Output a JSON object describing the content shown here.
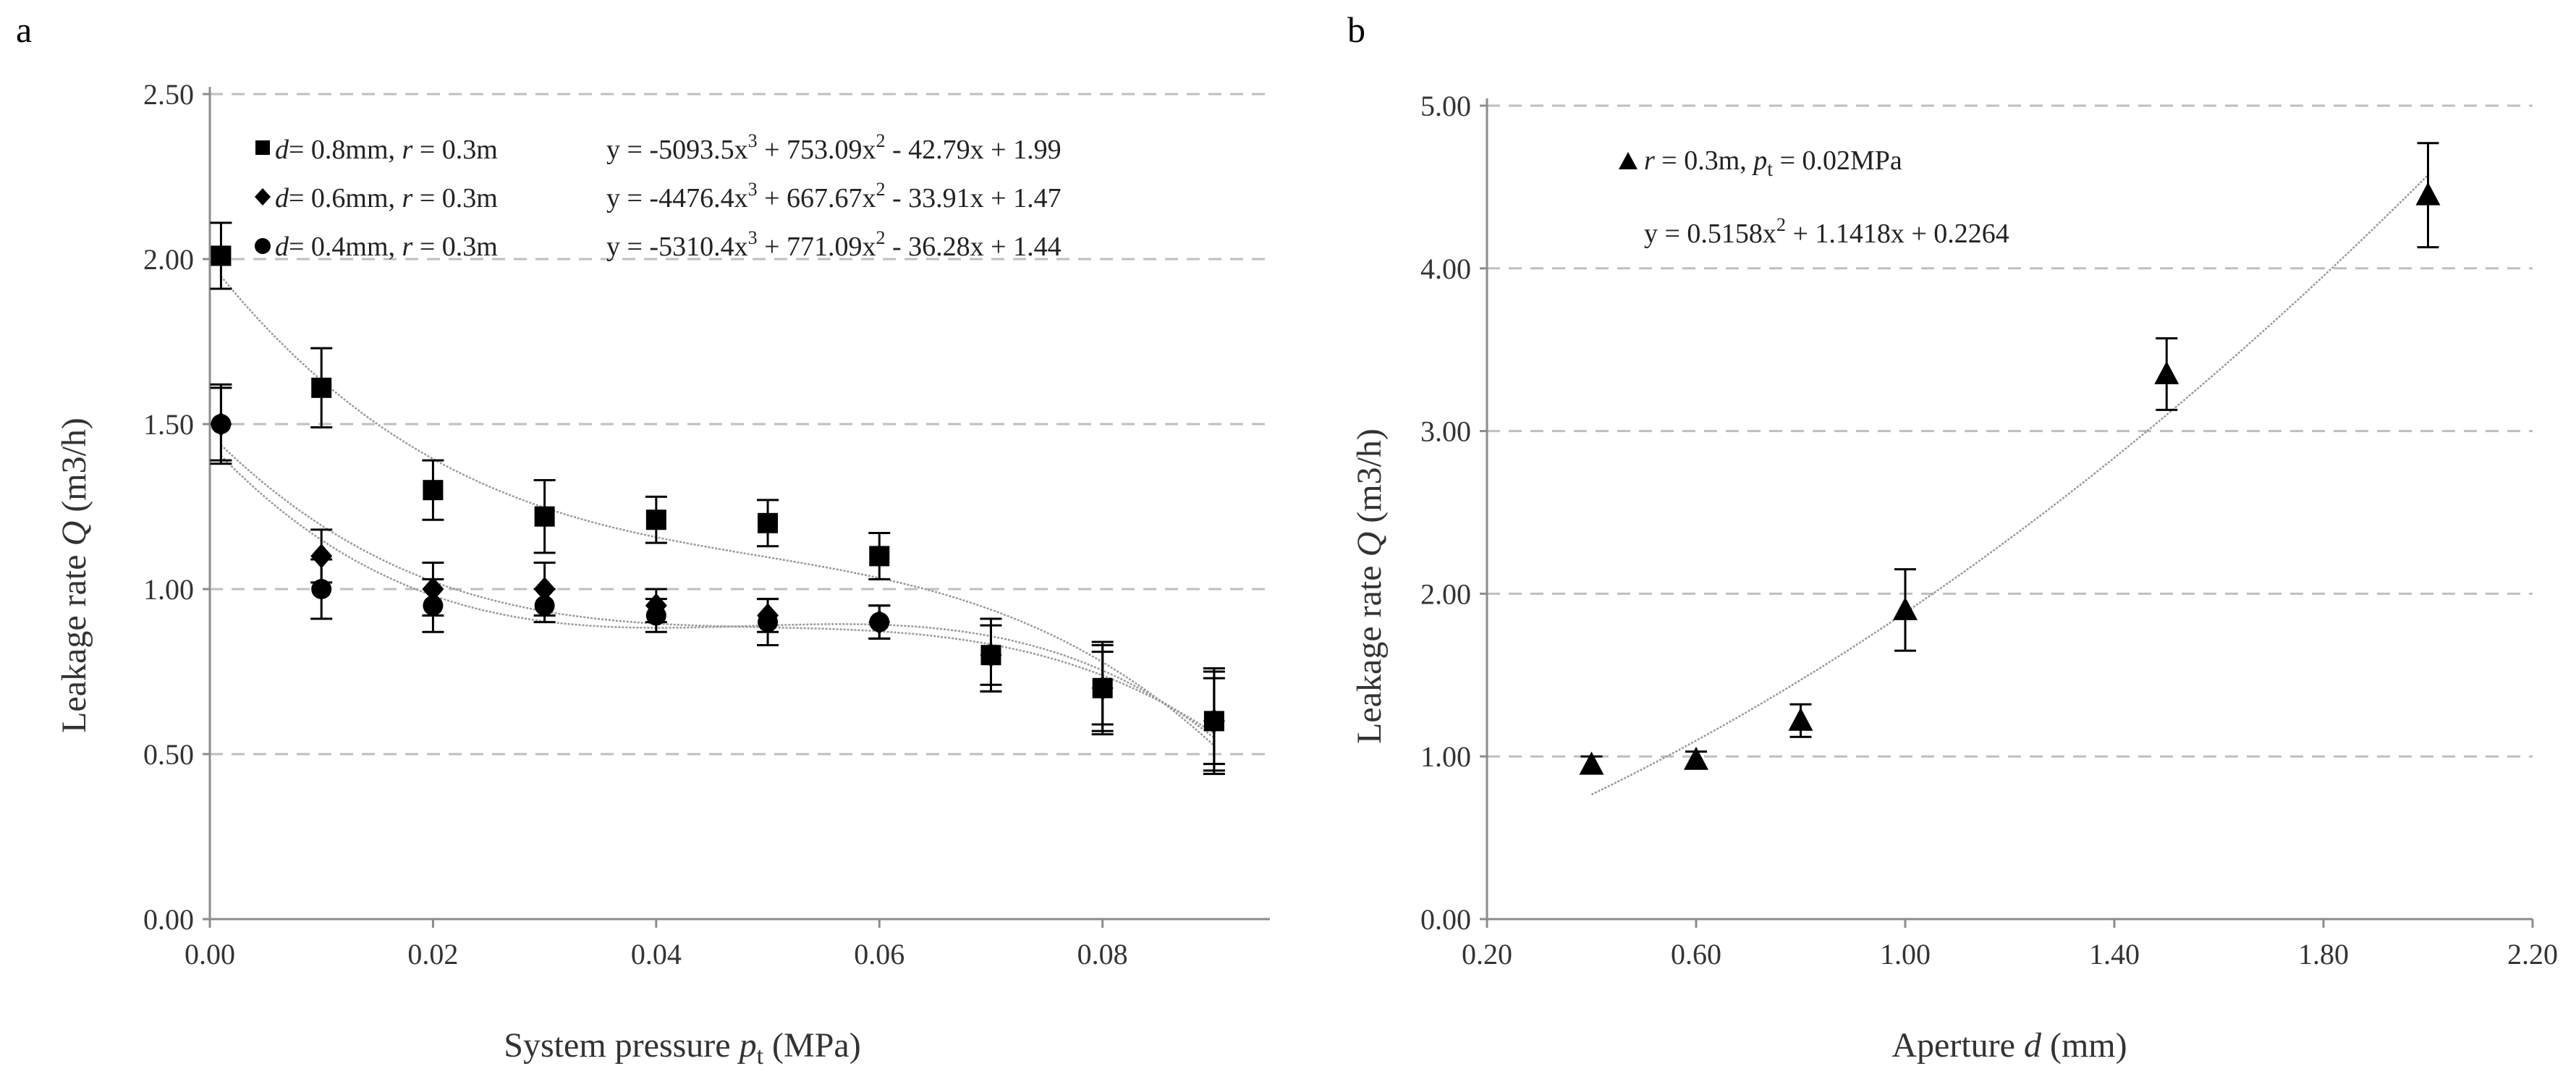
{
  "chart_data": [
    {
      "panel": "a",
      "type": "scatter",
      "xlabel": {
        "prefix": "System pressure ",
        "var": "p",
        "sub": "t",
        "suffix": " (MPa)"
      },
      "ylabel": {
        "prefix": "Leakage rate ",
        "var": "Q",
        "suffix": " (m3/h)"
      },
      "xlim": [
        0,
        0.095
      ],
      "ylim": [
        0,
        2.5
      ],
      "x_ticks": [
        "0.00",
        "0.02",
        "0.04",
        "0.06",
        "0.08"
      ],
      "x_tick_values": [
        0,
        0.02,
        0.04,
        0.06,
        0.08
      ],
      "y_ticks": [
        "0.00",
        "0.50",
        "1.00",
        "1.50",
        "2.00",
        "2.50"
      ],
      "y_tick_values": [
        0,
        0.5,
        1.0,
        1.5,
        2.0,
        2.5
      ],
      "grid": "horizontal dashed",
      "series": [
        {
          "name": "d = 0.8mm, r = 0.3m",
          "marker": "square",
          "legend": {
            "d_label": "d",
            "d_value": "= 0.8mm, ",
            "r_label": "r",
            "r_value": " = 0.3m"
          },
          "equation": {
            "a": "y = -5093.5x",
            "b": " + 753.09x",
            "c": " - 42.79x + 1.99"
          },
          "coef": [
            -5093.5,
            753.09,
            -42.79,
            1.99
          ],
          "x": [
            0.001,
            0.01,
            0.02,
            0.03,
            0.04,
            0.05,
            0.06,
            0.07,
            0.08,
            0.09
          ],
          "y": [
            2.01,
            1.61,
            1.3,
            1.22,
            1.21,
            1.2,
            1.1,
            0.8,
            0.7,
            0.6
          ],
          "err": [
            0.1,
            0.12,
            0.09,
            0.11,
            0.07,
            0.07,
            0.07,
            0.11,
            0.11,
            0.16
          ]
        },
        {
          "name": "d = 0.6mm, r = 0.3m",
          "marker": "diamond",
          "legend": {
            "d_label": "d",
            "d_value": "= 0.6mm, ",
            "r_label": "r",
            "r_value": " = 0.3m"
          },
          "equation": {
            "a": "y = -4476.4x",
            "b": " + 667.67x",
            "c": " - 33.91x + 1.47"
          },
          "coef": [
            -4476.4,
            667.67,
            -33.91,
            1.47
          ],
          "x": [
            0.001,
            0.01,
            0.02,
            0.03,
            0.04,
            0.05,
            0.06,
            0.07,
            0.08,
            0.09
          ],
          "y": [
            1.5,
            1.1,
            1.0,
            1.0,
            0.95,
            0.92,
            0.9,
            0.8,
            0.7,
            0.6
          ],
          "err": [
            0.11,
            0.08,
            0.08,
            0.08,
            0.05,
            0.05,
            0.05,
            0.09,
            0.13,
            0.15
          ]
        },
        {
          "name": "d = 0.4mm, r = 0.3m",
          "marker": "circle",
          "legend": {
            "d_label": "d",
            "d_value": "= 0.4mm, ",
            "r_label": "r",
            "r_value": " = 0.3m"
          },
          "equation": {
            "a": "y = -5310.4x",
            "b": " + 771.09x",
            "c": " - 36.28x + 1.44"
          },
          "coef": [
            -5310.4,
            771.09,
            -36.28,
            1.44
          ],
          "x": [
            0.001,
            0.01,
            0.02,
            0.03,
            0.04,
            0.05,
            0.06,
            0.07,
            0.08,
            0.09
          ],
          "y": [
            1.5,
            1.0,
            0.95,
            0.95,
            0.92,
            0.9,
            0.9,
            0.8,
            0.7,
            0.6
          ],
          "err": [
            0.12,
            0.09,
            0.08,
            0.05,
            0.05,
            0.07,
            0.05,
            0.11,
            0.14,
            0.13
          ]
        }
      ],
      "exponents": [
        "3",
        "2"
      ]
    },
    {
      "panel": "b",
      "type": "scatter",
      "xlabel": {
        "prefix": "Aperture ",
        "var": "d",
        "suffix": " (mm)"
      },
      "ylabel": {
        "prefix": "Leakage rate ",
        "var": "Q",
        "suffix": " (m3/h)"
      },
      "xlim": [
        0.2,
        2.2
      ],
      "ylim": [
        0,
        5.0
      ],
      "x_ticks": [
        "0.20",
        "0.60",
        "1.00",
        "1.40",
        "1.80",
        "2.20"
      ],
      "x_tick_values": [
        0.2,
        0.6,
        1.0,
        1.4,
        1.8,
        2.2
      ],
      "y_ticks": [
        "0.00",
        "1.00",
        "2.00",
        "3.00",
        "4.00",
        "5.00"
      ],
      "y_tick_values": [
        0,
        1,
        2,
        3,
        4,
        5
      ],
      "grid": "horizontal dashed",
      "series": [
        {
          "name": "r = 0.3m, pt = 0.02MPa",
          "marker": "triangle",
          "legend": {
            "r_label": "r",
            "r_value": " = 0.3m, ",
            "p_label": "p",
            "p_sub": "t",
            "p_value": " = 0.02MPa"
          },
          "equation": {
            "a": "y = 0.5158x",
            "b": " + 1.1418x + 0.2264"
          },
          "coef": [
            0.5158,
            1.1418,
            0.2264
          ],
          "x": [
            0.4,
            0.6,
            0.8,
            1.0,
            1.5,
            2.0
          ],
          "y": [
            0.95,
            0.98,
            1.22,
            1.9,
            3.35,
            4.45
          ],
          "err": [
            0.05,
            0.05,
            0.1,
            0.25,
            0.22,
            0.32
          ]
        }
      ],
      "exponents": [
        "2"
      ]
    }
  ],
  "panel_labels": [
    "a",
    "b"
  ],
  "colors": {
    "marker": "#000000",
    "trend": "#999999",
    "grid": "#bfbfbf",
    "axis": "#8c8c8c"
  }
}
